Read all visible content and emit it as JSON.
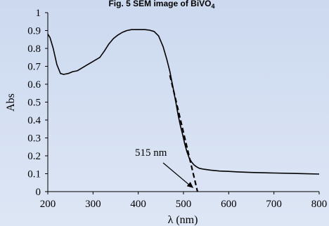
{
  "chart_data": {
    "type": "line",
    "title": "Fig. 5 SEM image of BiVO",
    "title_subscript": "4",
    "xlabel": "λ (nm)",
    "ylabel": "Abs",
    "xlim": [
      200,
      800
    ],
    "ylim": [
      0,
      1
    ],
    "xticks": [
      "200",
      "300",
      "400",
      "500",
      "600",
      "700",
      "800"
    ],
    "yticks": [
      "0",
      "0.1",
      "0.2",
      "0.3",
      "0.4",
      "0.5",
      "0.6",
      "0.7",
      "0.8",
      "0.9",
      "1"
    ],
    "grid": false,
    "series": [
      {
        "color": "#000000",
        "x": [
          200,
          205,
          212,
          220,
          228,
          235,
          245,
          255,
          265,
          275,
          285,
          295,
          305,
          315,
          325,
          335,
          345,
          355,
          365,
          375,
          385,
          395,
          405,
          415,
          425,
          435,
          445,
          455,
          463,
          470,
          477,
          483,
          488,
          493,
          498,
          503,
          508,
          513,
          518,
          523,
          528,
          535,
          545,
          560,
          580,
          600,
          620,
          650,
          700,
          750,
          800
        ],
        "y": [
          0.88,
          0.86,
          0.8,
          0.71,
          0.66,
          0.655,
          0.66,
          0.67,
          0.675,
          0.69,
          0.705,
          0.72,
          0.735,
          0.75,
          0.785,
          0.825,
          0.855,
          0.875,
          0.89,
          0.9,
          0.905,
          0.905,
          0.905,
          0.905,
          0.902,
          0.895,
          0.87,
          0.81,
          0.74,
          0.67,
          0.58,
          0.5,
          0.43,
          0.37,
          0.32,
          0.265,
          0.22,
          0.185,
          0.165,
          0.15,
          0.14,
          0.13,
          0.125,
          0.12,
          0.115,
          0.113,
          0.11,
          0.107,
          0.104,
          0.101,
          0.098
        ]
      }
    ],
    "tangent": {
      "x": [
        470,
        531
      ],
      "y": [
        0.65,
        0.0
      ],
      "style": "dashed"
    },
    "annotation": {
      "text": "515 nm",
      "arrow_to": [
        522,
        0.02
      ]
    }
  }
}
